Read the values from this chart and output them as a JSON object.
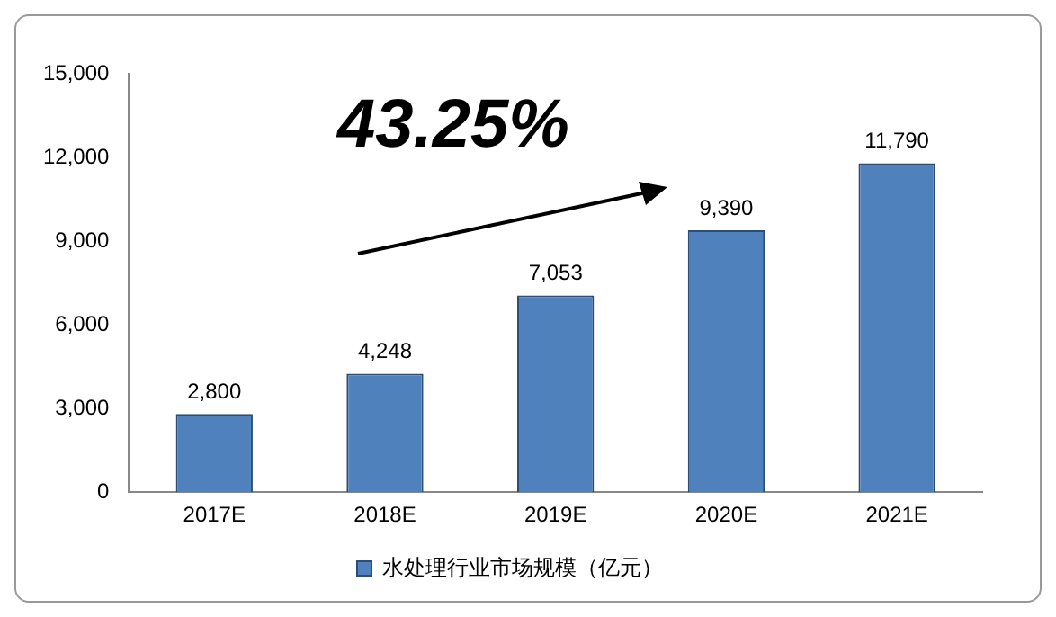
{
  "chart_data": {
    "type": "bar",
    "categories": [
      "2017E",
      "2018E",
      "2019E",
      "2020E",
      "2021E"
    ],
    "series": [
      {
        "name": "水处理行业市场规模（亿元）",
        "color": "#4f81bd",
        "values": [
          2800,
          4248,
          7053,
          9390,
          11790
        ],
        "value_labels": [
          "2,800",
          "4,248",
          "7,053",
          "9,390",
          "11,790"
        ]
      }
    ],
    "ylim": [
      0,
      15000
    ],
    "yticks": [
      0,
      {
        "value": 3000,
        "label": "3,000"
      },
      {
        "value": 6000,
        "label": "6,000"
      },
      {
        "value": 9000,
        "label": "9,000"
      },
      {
        "value": 12000,
        "label": "12,000"
      },
      {
        "value": 15000,
        "label": "15,000"
      }
    ],
    "annotations": [
      "43.25%"
    ],
    "legend": "bottom",
    "grid": false
  }
}
